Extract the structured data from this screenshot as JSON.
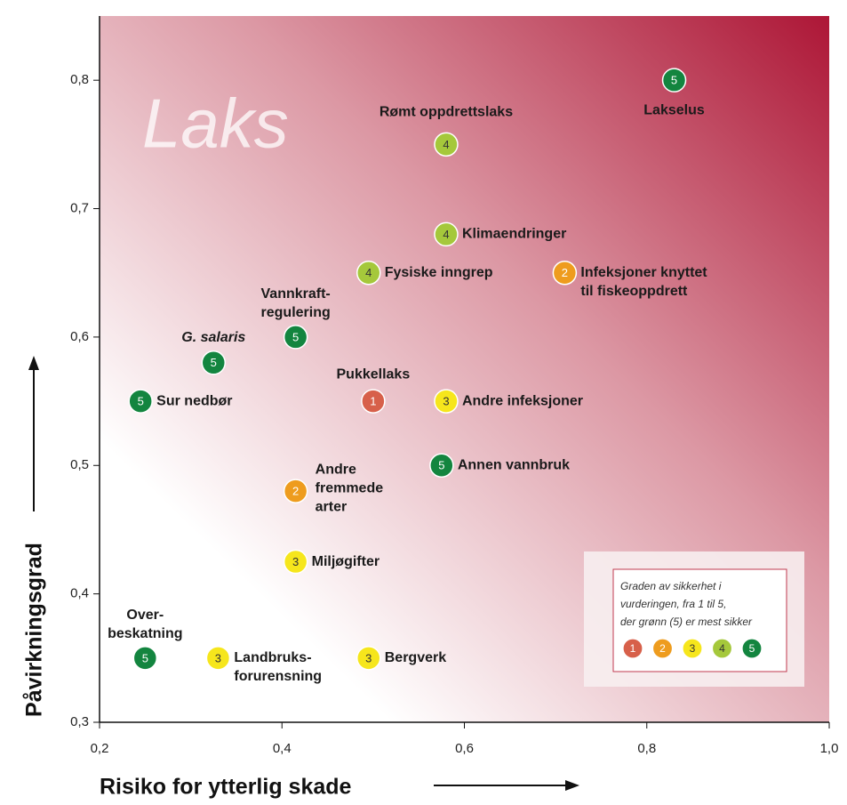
{
  "chart_data": {
    "type": "scatter",
    "watermark": "Laks",
    "xlabel": "Risiko for ytterlig skade",
    "ylabel": "Påvirkningsgrad",
    "xlim": [
      0.2,
      1.0
    ],
    "ylim": [
      0.3,
      0.85
    ],
    "xticks": [
      {
        "value": 0.2,
        "label": "0,2"
      },
      {
        "value": 0.4,
        "label": "0,4"
      },
      {
        "value": 0.6,
        "label": "0,6"
      },
      {
        "value": 0.8,
        "label": "0,8"
      },
      {
        "value": 1.0,
        "label": "1,0"
      }
    ],
    "yticks": [
      {
        "value": 0.3,
        "label": "0,3"
      },
      {
        "value": 0.4,
        "label": "0,4"
      },
      {
        "value": 0.5,
        "label": "0,5"
      },
      {
        "value": 0.6,
        "label": "0,6"
      },
      {
        "value": 0.7,
        "label": "0,7"
      },
      {
        "value": 0.8,
        "label": "0,8"
      }
    ],
    "points": [
      {
        "label": [
          "Lakselus"
        ],
        "x": 0.83,
        "y": 0.8,
        "certainty": 5
      },
      {
        "label": [
          "Rømt oppdrettslaks"
        ],
        "x": 0.58,
        "y": 0.75,
        "certainty": 4
      },
      {
        "label": [
          "Klimaendringer"
        ],
        "x": 0.58,
        "y": 0.68,
        "certainty": 4
      },
      {
        "label": [
          "Fysiske inngrep"
        ],
        "x": 0.495,
        "y": 0.65,
        "certainty": 4
      },
      {
        "label": [
          "Infeksjoner knyttet",
          "til fiskeoppdrett"
        ],
        "x": 0.71,
        "y": 0.65,
        "certainty": 2
      },
      {
        "label": [
          "Vannkraft-",
          "regulering"
        ],
        "x": 0.415,
        "y": 0.6,
        "certainty": 5
      },
      {
        "label": [
          "G. salaris"
        ],
        "x": 0.325,
        "y": 0.58,
        "certainty": 5
      },
      {
        "label": [
          "Sur nedbør"
        ],
        "x": 0.245,
        "y": 0.55,
        "certainty": 5
      },
      {
        "label": [
          "Pukkellaks"
        ],
        "x": 0.5,
        "y": 0.55,
        "certainty": 1
      },
      {
        "label": [
          "Andre infeksjoner"
        ],
        "x": 0.58,
        "y": 0.55,
        "certainty": 3
      },
      {
        "label": [
          "Annen vannbruk"
        ],
        "x": 0.575,
        "y": 0.5,
        "certainty": 5
      },
      {
        "label": [
          "Andre",
          "fremmede",
          "arter"
        ],
        "x": 0.415,
        "y": 0.48,
        "certainty": 2
      },
      {
        "label": [
          "Miljøgifter"
        ],
        "x": 0.415,
        "y": 0.425,
        "certainty": 3
      },
      {
        "label": [
          "Over-",
          "beskatning"
        ],
        "x": 0.25,
        "y": 0.35,
        "certainty": 5
      },
      {
        "label": [
          "Landbruks-",
          "forurensning"
        ],
        "x": 0.33,
        "y": 0.35,
        "certainty": 3
      },
      {
        "label": [
          "Bergverk"
        ],
        "x": 0.495,
        "y": 0.35,
        "certainty": 3
      }
    ],
    "legend": {
      "title": [
        "Graden av sikkerhet i",
        "vurderingen, fra 1 til 5,",
        "der grønn (5) er mest sikker"
      ],
      "items": [
        {
          "level": 1,
          "color": "#d7604a"
        },
        {
          "level": 2,
          "color": "#ee9c1e"
        },
        {
          "level": 3,
          "color": "#f6e61c"
        },
        {
          "level": 4,
          "color": "#a5c83b"
        },
        {
          "level": 5,
          "color": "#13853f"
        }
      ]
    }
  }
}
